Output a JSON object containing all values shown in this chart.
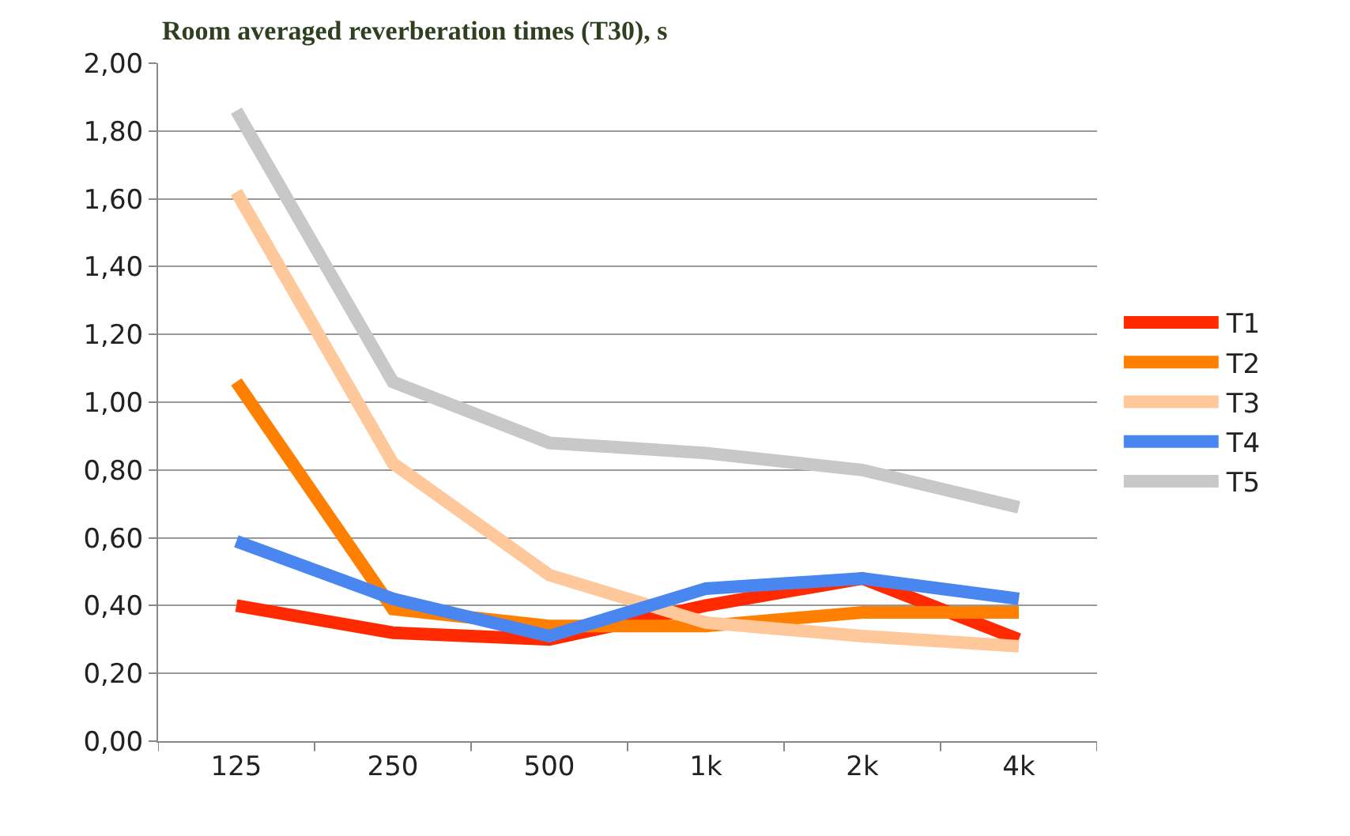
{
  "chart_data": {
    "type": "line",
    "title": "Room averaged reverberation times (T30), s",
    "categories": [
      "125",
      "250",
      "500",
      "1k",
      "2k",
      "4k"
    ],
    "series": [
      {
        "name": "T1",
        "color": "#ff2a00",
        "values": [
          0.4,
          0.32,
          0.3,
          0.4,
          0.48,
          0.3
        ]
      },
      {
        "name": "T2",
        "color": "#ff7f00",
        "values": [
          1.06,
          0.39,
          0.34,
          0.34,
          0.38,
          0.38
        ]
      },
      {
        "name": "T3",
        "color": "#ffc89a",
        "values": [
          1.62,
          0.82,
          0.49,
          0.35,
          0.31,
          0.28
        ]
      },
      {
        "name": "T4",
        "color": "#4a86f0",
        "values": [
          0.59,
          0.42,
          0.31,
          0.45,
          0.48,
          0.42
        ]
      },
      {
        "name": "T5",
        "color": "#c8c8c8",
        "values": [
          1.86,
          1.06,
          0.88,
          0.85,
          0.8,
          0.69
        ]
      }
    ],
    "ylim": [
      0,
      2
    ],
    "yticks": [
      {
        "value": 0,
        "label": "0,00"
      },
      {
        "value": 0.2,
        "label": "0,20"
      },
      {
        "value": 0.4,
        "label": "0,40"
      },
      {
        "value": 0.6,
        "label": "0,60"
      },
      {
        "value": 0.8,
        "label": "0,80"
      },
      {
        "value": 1.0,
        "label": "1,00"
      },
      {
        "value": 1.2,
        "label": "1,20"
      },
      {
        "value": 1.4,
        "label": "1,40"
      },
      {
        "value": 1.6,
        "label": "1,60"
      },
      {
        "value": 1.8,
        "label": "1,80"
      },
      {
        "value": 2.0,
        "label": "2,00"
      }
    ],
    "grid": "y",
    "legend": "right",
    "marker": "none",
    "line_style": "solid"
  }
}
